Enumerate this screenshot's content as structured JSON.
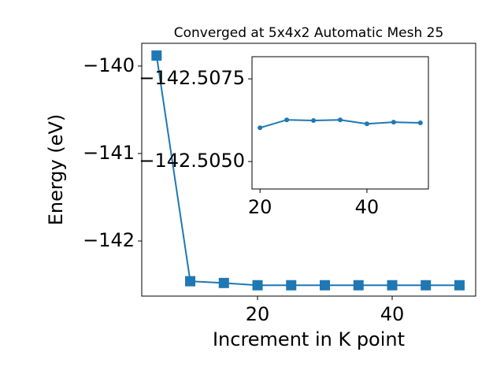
{
  "chart_data": [
    {
      "type": "line",
      "title": "Converged at 5x4x2 Automatic Mesh 25",
      "xlabel": "Increment in K point",
      "ylabel": "Energy (eV)",
      "x": [
        5,
        10,
        15,
        20,
        25,
        30,
        35,
        40,
        45,
        50
      ],
      "series": [
        {
          "color": "#1f77b4",
          "marker": "square",
          "values": [
            -139.88,
            -142.46,
            -142.48,
            -142.506,
            -142.506,
            -142.506,
            -142.506,
            -142.506,
            -142.506,
            -142.506
          ]
        }
      ],
      "xlim": [
        2.8,
        52.4
      ],
      "ylim": [
        -142.63,
        -139.74
      ],
      "xticks": [
        20,
        40
      ],
      "yticks": [
        {
          "value": -140,
          "label": "−140"
        },
        {
          "value": -141,
          "label": "−141"
        },
        {
          "value": -142,
          "label": "−142"
        }
      ]
    },
    {
      "type": "line",
      "x": [
        20,
        25,
        30,
        35,
        40,
        45,
        50
      ],
      "series": [
        {
          "color": "#1f77b4",
          "marker": "circle",
          "values": [
            -142.50602,
            -142.50626,
            -142.50624,
            -142.50626,
            -142.50614,
            -142.50619,
            -142.50617
          ]
        }
      ],
      "xlim": [
        18.5,
        51.5
      ],
      "ylim": [
        -142.50417,
        -142.50817
      ],
      "xticks": [
        20,
        40
      ],
      "yticks": [
        {
          "value": -142.5075,
          "label": "−142.5075"
        },
        {
          "value": -142.505,
          "label": "−142.5050"
        }
      ]
    }
  ]
}
